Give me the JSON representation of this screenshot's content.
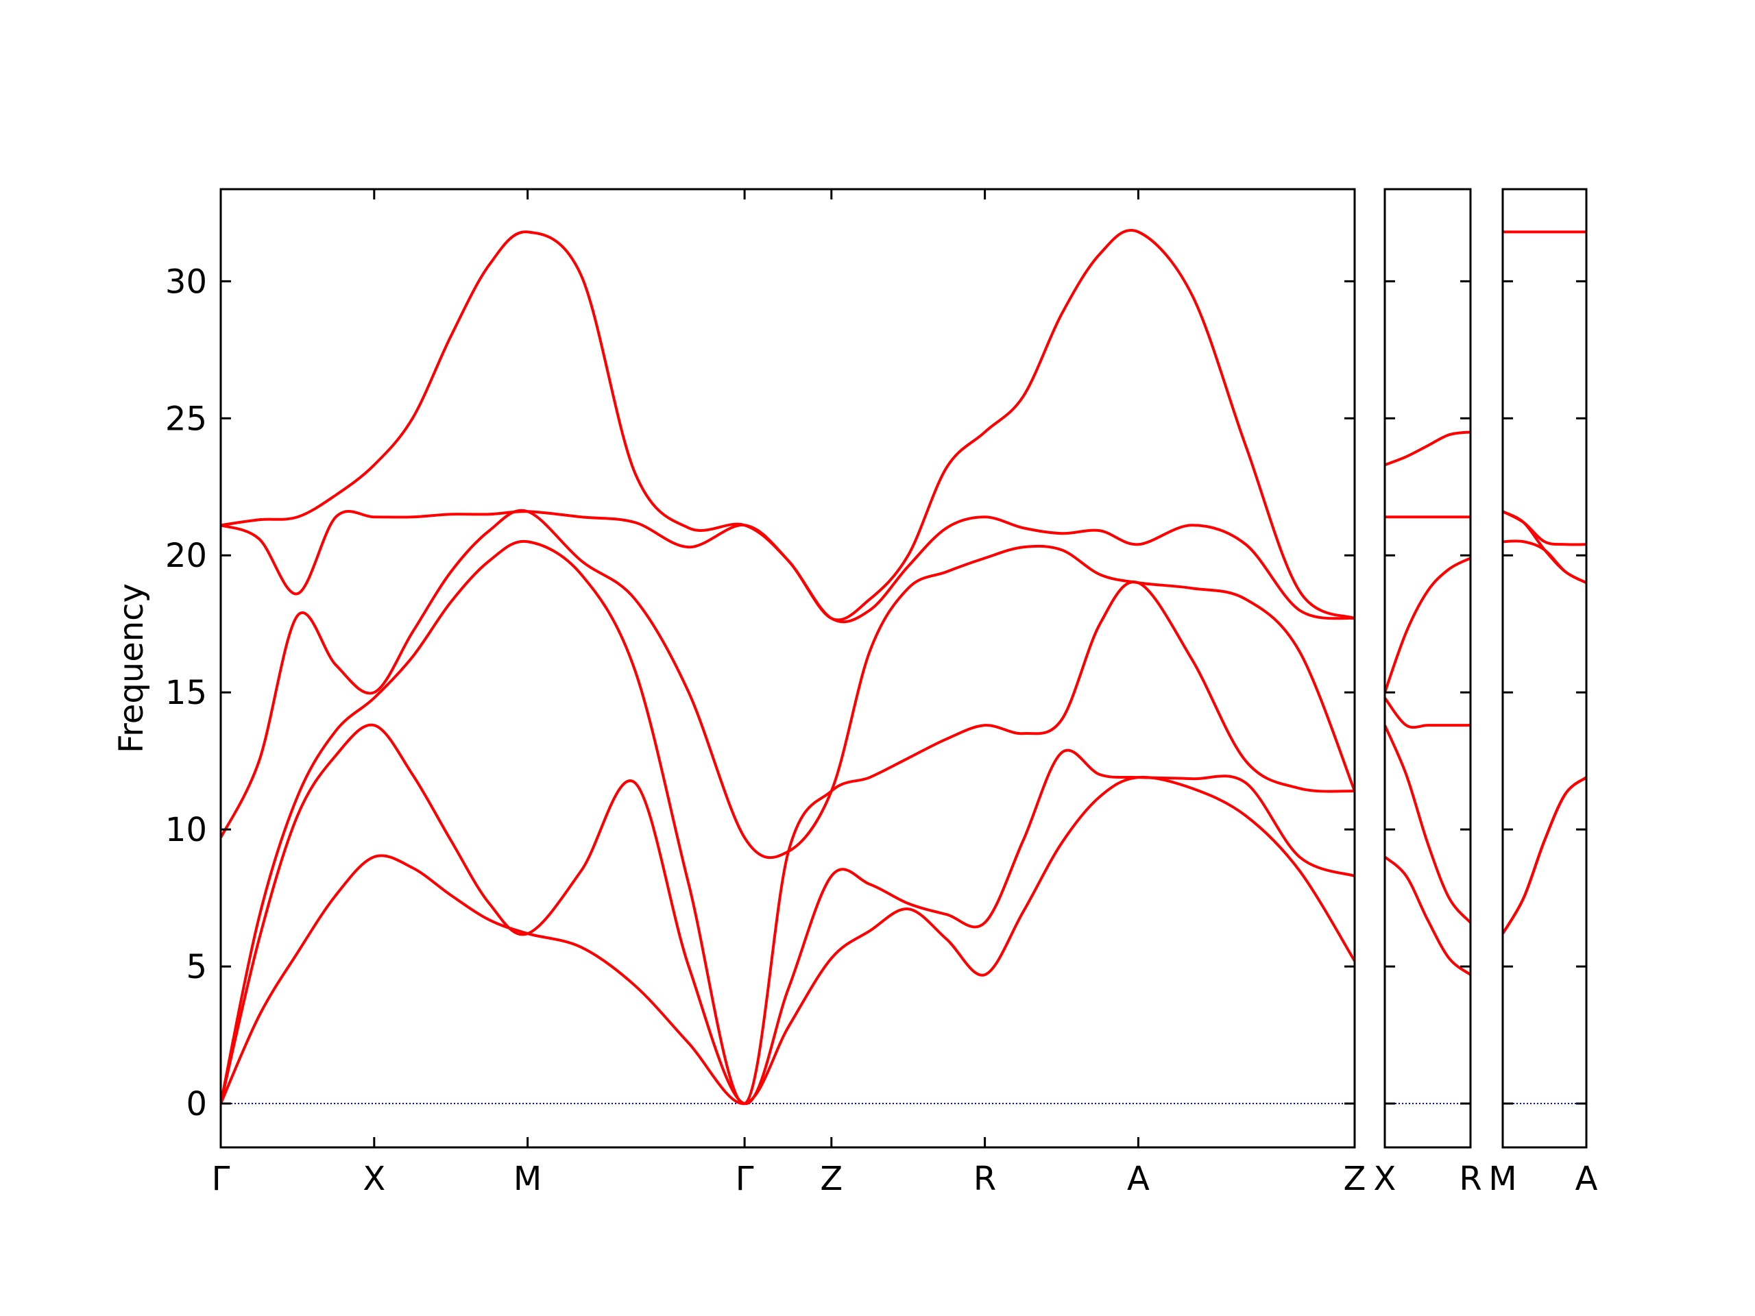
{
  "chart_data": [
    {
      "type": "line",
      "ylabel": "Frequency",
      "color": "#ff0000",
      "hline": {
        "value": 0,
        "color": "#0000ff"
      },
      "show_ytick_labels": true,
      "xlim": [
        0,
        7.39
      ],
      "ylim": [
        -1.6,
        33.36
      ],
      "yticks": [
        0,
        5,
        10,
        15,
        20,
        25,
        30
      ],
      "xticks": [
        {
          "value": 0,
          "label": "Γ"
        },
        {
          "value": 1,
          "label": "X"
        },
        {
          "value": 2,
          "label": "M"
        },
        {
          "value": 3.414,
          "label": "Γ"
        },
        {
          "value": 3.98,
          "label": "Z"
        },
        {
          "value": 4.98,
          "label": "R"
        },
        {
          "value": 5.98,
          "label": "A"
        },
        {
          "value": 7.39,
          "label": "Z"
        }
      ],
      "x": [
        0,
        0.25,
        0.5,
        0.75,
        1,
        1.25,
        1.5,
        1.75,
        2,
        2.35,
        2.7,
        3.05,
        3.414,
        3.7,
        3.98,
        4.23,
        4.48,
        4.73,
        4.98,
        5.23,
        5.48,
        5.73,
        5.98,
        6.33,
        6.68,
        7.03,
        7.39
      ],
      "series": [
        {
          "values": [
            0,
            3.2,
            5.5,
            7.6,
            9.0,
            8.6,
            7.6,
            6.7,
            6.2,
            5.7,
            4.3,
            2.2,
            0,
            2.8,
            5.3,
            6.3,
            7.1,
            6.0,
            4.7,
            7.0,
            9.5,
            11.2,
            11.9,
            11.5,
            10.5,
            8.5,
            5.2
          ]
        },
        {
          "values": [
            0,
            6.0,
            10.5,
            12.7,
            13.8,
            12.0,
            9.6,
            7.3,
            6.2,
            8.5,
            11.7,
            5.0,
            0,
            4.2,
            8.3,
            8.0,
            7.3,
            6.9,
            6.6,
            9.6,
            12.8,
            12.0,
            11.9,
            11.85,
            11.7,
            9.0,
            8.3
          ]
        },
        {
          "values": [
            0,
            6.8,
            11.2,
            13.6,
            14.8,
            16.3,
            18.3,
            19.8,
            20.5,
            19.3,
            15.8,
            8.0,
            0,
            9.2,
            11.4,
            11.9,
            12.6,
            13.3,
            13.8,
            13.5,
            14.0,
            17.5,
            19.0,
            16.2,
            12.5,
            11.5,
            11.4
          ]
        },
        {
          "values": [
            9.7,
            12.5,
            17.8,
            16.0,
            15.0,
            17.2,
            19.4,
            20.9,
            21.6,
            19.8,
            18.4,
            15.0,
            9.7,
            9.2,
            11.4,
            16.5,
            18.8,
            19.4,
            19.9,
            20.3,
            20.2,
            19.3,
            19.0,
            18.8,
            18.4,
            16.5,
            11.4
          ]
        },
        {
          "values": [
            21.1,
            20.6,
            18.6,
            21.4,
            21.4,
            21.4,
            21.5,
            21.5,
            21.6,
            21.4,
            21.2,
            20.3,
            21.1,
            19.8,
            17.7,
            18.0,
            19.6,
            21.0,
            21.4,
            21.0,
            20.8,
            20.9,
            20.4,
            21.1,
            20.4,
            18.0,
            17.7
          ]
        },
        {
          "values": [
            21.1,
            21.3,
            21.4,
            22.2,
            23.3,
            25.0,
            28.0,
            30.6,
            31.8,
            30.2,
            23.0,
            21.0,
            21.1,
            19.8,
            17.7,
            18.4,
            20.0,
            23.2,
            24.5,
            25.8,
            28.8,
            31.0,
            31.8,
            29.5,
            24.0,
            18.7,
            17.7
          ]
        }
      ]
    },
    {
      "type": "line",
      "color": "#ff0000",
      "hline": {
        "value": 0,
        "color": "#0000ff"
      },
      "show_ytick_labels": false,
      "xlim": [
        0,
        0.56
      ],
      "ylim": [
        -1.6,
        33.36
      ],
      "yticks": [
        0,
        5,
        10,
        15,
        20,
        25,
        30
      ],
      "xticks": [
        {
          "value": 0,
          "label": "X"
        },
        {
          "value": 0.56,
          "label": "R"
        }
      ],
      "x": [
        0,
        0.14,
        0.28,
        0.42,
        0.56
      ],
      "series": [
        {
          "values": [
            9.0,
            8.3,
            6.7,
            5.3,
            4.7
          ]
        },
        {
          "values": [
            13.8,
            12.0,
            9.5,
            7.5,
            6.6
          ]
        },
        {
          "values": [
            14.8,
            13.8,
            13.8,
            13.8,
            13.8
          ]
        },
        {
          "values": [
            15.0,
            17.2,
            18.7,
            19.5,
            19.9
          ]
        },
        {
          "values": [
            21.4,
            21.4,
            21.4,
            21.4,
            21.4
          ]
        },
        {
          "values": [
            23.3,
            23.6,
            24.0,
            24.4,
            24.5
          ]
        }
      ]
    },
    {
      "type": "line",
      "color": "#ff0000",
      "hline": {
        "value": 0,
        "color": "#0000ff"
      },
      "show_ytick_labels": false,
      "xlim": [
        0,
        0.56
      ],
      "ylim": [
        -1.6,
        33.36
      ],
      "yticks": [
        0,
        5,
        10,
        15,
        20,
        25,
        30
      ],
      "xticks": [
        {
          "value": 0,
          "label": "M"
        },
        {
          "value": 0.56,
          "label": "A"
        }
      ],
      "x": [
        0,
        0.14,
        0.28,
        0.42,
        0.56
      ],
      "series": [
        {
          "values": [
            6.2,
            7.5,
            9.6,
            11.3,
            11.9
          ]
        },
        {
          "values": [
            6.2,
            7.5,
            9.6,
            11.3,
            11.9
          ]
        },
        {
          "values": [
            20.5,
            20.5,
            20.2,
            19.4,
            19.0
          ]
        },
        {
          "values": [
            21.6,
            21.2,
            20.2,
            19.4,
            19.0
          ]
        },
        {
          "values": [
            21.6,
            21.2,
            20.5,
            20.4,
            20.4
          ]
        },
        {
          "values": [
            31.8,
            31.8,
            31.8,
            31.8,
            31.8
          ]
        }
      ]
    }
  ]
}
